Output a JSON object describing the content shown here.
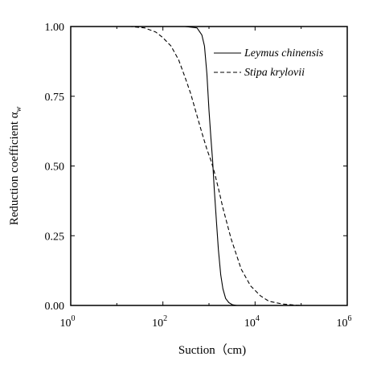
{
  "chart_data": {
    "type": "line",
    "xlabel": "Suction（cm)",
    "ylabel": "Reduction coefficient α",
    "ylabel_subscript": "w",
    "xscale": "log",
    "xlim": [
      1,
      1000000
    ],
    "ylim": [
      0,
      1
    ],
    "x_ticks": [
      {
        "base": "10",
        "exp": "0"
      },
      {
        "base": "10",
        "exp": "2"
      },
      {
        "base": "10",
        "exp": "4"
      },
      {
        "base": "10",
        "exp": "6"
      }
    ],
    "y_ticks": [
      "0.00",
      "0.25",
      "0.50",
      "0.75",
      "1.00"
    ],
    "legend_position": "top-right",
    "series": [
      {
        "name": "Leymus chinensis",
        "dash": "solid",
        "x": [
          1,
          300,
          550,
          700,
          800,
          900,
          1000,
          1100,
          1200,
          1300,
          1450,
          1600,
          1800,
          2000,
          2300,
          2700,
          3200,
          4000,
          1000000
        ],
        "y": [
          1.0,
          1.0,
          0.995,
          0.97,
          0.93,
          0.83,
          0.7,
          0.6,
          0.52,
          0.42,
          0.3,
          0.2,
          0.11,
          0.06,
          0.025,
          0.01,
          0.003,
          0.0,
          0.0
        ]
      },
      {
        "name": "Stipa krylovii",
        "dash": "dashed",
        "x": [
          1,
          20,
          40,
          70,
          100,
          150,
          220,
          300,
          400,
          550,
          700,
          900,
          1100,
          1300,
          1600,
          2000,
          3000,
          5000,
          8000,
          13000,
          20000,
          40000,
          80000,
          100000
        ],
        "y": [
          1.0,
          1.0,
          0.995,
          0.98,
          0.96,
          0.93,
          0.88,
          0.82,
          0.76,
          0.68,
          0.62,
          0.56,
          0.52,
          0.48,
          0.42,
          0.35,
          0.24,
          0.13,
          0.07,
          0.035,
          0.015,
          0.005,
          0.001,
          0.0
        ]
      }
    ]
  }
}
